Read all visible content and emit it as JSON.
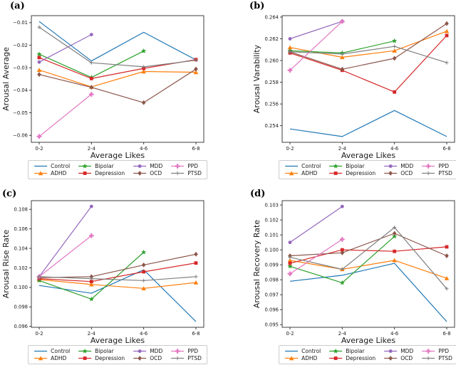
{
  "figure_title": "",
  "xlabel_shared": "Average Likes",
  "panel_labels": [
    "(a)",
    "(b)",
    "(c)",
    "(d)"
  ],
  "accent_colors": {
    "blue": "#1f77b4",
    "orange": "#ff7f0e",
    "green": "#2ca02c",
    "red": "#d62728",
    "purple": "#9467bd",
    "brown": "#8c564b",
    "pink": "#e377c2",
    "gray": "#7f7f7f"
  },
  "legend_styles": [
    {
      "name": "Control",
      "color": "#1f77b4",
      "marker": "line"
    },
    {
      "name": "ADHD",
      "color": "#ff7f0e",
      "marker": "triangle"
    },
    {
      "name": "Bipolar",
      "color": "#2ca02c",
      "marker": "star"
    },
    {
      "name": "Depression",
      "color": "#d62728",
      "marker": "square"
    },
    {
      "name": "MDD",
      "color": "#9467bd",
      "marker": "circle"
    },
    {
      "name": "OCD",
      "color": "#8c564b",
      "marker": "diamond"
    },
    {
      "name": "PPD",
      "color": "#e377c2",
      "marker": "plus"
    },
    {
      "name": "PTSD",
      "color": "#7f7f7f",
      "marker": "thinplus"
    }
  ],
  "chart_data": [
    {
      "type": "line",
      "panel_label": "(a)",
      "xlabel": "Average Likes",
      "ylabel": "Arousal Average",
      "categories": [
        "0-2",
        "2-4",
        "4-6",
        "6-8"
      ],
      "ylim": [
        -0.0631,
        -0.0069
      ],
      "yticks": [
        {
          "v": -0.01,
          "label": "−0.01"
        },
        {
          "v": -0.02,
          "label": "−0.02"
        },
        {
          "v": -0.03,
          "label": "−0.03"
        },
        {
          "v": -0.04,
          "label": "−0.04"
        },
        {
          "v": -0.05,
          "label": "−0.05"
        },
        {
          "v": -0.06,
          "label": "−0.06"
        }
      ],
      "legend_position": "below",
      "grid": false,
      "series": [
        {
          "name": "Control",
          "values": [
            -0.0095,
            -0.027,
            -0.0143,
            -0.0265
          ]
        },
        {
          "name": "ADHD",
          "values": [
            -0.031,
            -0.0385,
            -0.0317,
            -0.032
          ]
        },
        {
          "name": "Bipolar",
          "values": [
            -0.024,
            -0.0343,
            -0.0226,
            null
          ]
        },
        {
          "name": "Depression",
          "values": [
            -0.0255,
            -0.0348,
            -0.0303,
            -0.0264
          ]
        },
        {
          "name": "MDD",
          "values": [
            -0.0275,
            -0.0153,
            null,
            null
          ]
        },
        {
          "name": "OCD",
          "values": [
            -0.033,
            -0.0387,
            -0.0455,
            -0.0306
          ]
        },
        {
          "name": "PPD",
          "values": [
            -0.0605,
            -0.0418,
            null,
            null
          ]
        },
        {
          "name": "PTSD",
          "values": [
            -0.012,
            -0.0278,
            -0.0296,
            -0.0267
          ]
        }
      ]
    },
    {
      "type": "line",
      "panel_label": "(b)",
      "xlabel": "Average Likes",
      "ylabel": "Arousal Varability",
      "categories": [
        "0-2",
        "2-4",
        "4-6",
        "6-8"
      ],
      "ylim": [
        0.25247,
        0.26413
      ],
      "yticks": [
        {
          "v": 0.264,
          "label": "0.264"
        },
        {
          "v": 0.262,
          "label": "0.262"
        },
        {
          "v": 0.26,
          "label": "0.260"
        },
        {
          "v": 0.258,
          "label": "0.258"
        },
        {
          "v": 0.256,
          "label": "0.256"
        },
        {
          "v": 0.254,
          "label": "0.254"
        }
      ],
      "legend_position": "below",
      "grid": false,
      "series": [
        {
          "name": "Control",
          "values": [
            0.2537,
            0.253,
            0.2554,
            0.253
          ]
        },
        {
          "name": "ADHD",
          "values": [
            0.2612,
            0.2603,
            0.2609,
            0.2627
          ]
        },
        {
          "name": "Bipolar",
          "values": [
            0.2609,
            0.2607,
            0.2618,
            null
          ]
        },
        {
          "name": "Depression",
          "values": [
            0.2607,
            0.2591,
            0.2571,
            0.2623
          ]
        },
        {
          "name": "MDD",
          "values": [
            0.262,
            0.2636,
            null,
            null
          ]
        },
        {
          "name": "OCD",
          "values": [
            0.2608,
            0.2592,
            0.2602,
            0.2634
          ]
        },
        {
          "name": "PPD",
          "values": [
            0.2591,
            0.2636,
            null,
            null
          ]
        },
        {
          "name": "PTSD",
          "values": [
            0.2608,
            0.2606,
            0.2613,
            0.2598
          ]
        }
      ]
    },
    {
      "type": "line",
      "panel_label": "(c)",
      "xlabel": "Average Likes",
      "ylabel": "Arousal Rise Rate",
      "categories": [
        "0-2",
        "2-4",
        "4-6",
        "6-8"
      ],
      "ylim": [
        0.09591,
        0.10889
      ],
      "yticks": [
        {
          "v": 0.108,
          "label": "0.108"
        },
        {
          "v": 0.106,
          "label": "0.106"
        },
        {
          "v": 0.104,
          "label": "0.104"
        },
        {
          "v": 0.102,
          "label": "0.102"
        },
        {
          "v": 0.1,
          "label": "0.100"
        },
        {
          "v": 0.098,
          "label": "0.098"
        },
        {
          "v": 0.096,
          "label": "0.096"
        }
      ],
      "legend_position": "below",
      "grid": false,
      "series": [
        {
          "name": "Control",
          "values": [
            0.1002,
            0.0994,
            0.1018,
            0.0965
          ]
        },
        {
          "name": "ADHD",
          "values": [
            0.1008,
            0.1003,
            0.0999,
            0.1005
          ]
        },
        {
          "name": "Bipolar",
          "values": [
            0.1007,
            0.0988,
            0.1036,
            null
          ]
        },
        {
          "name": "Depression",
          "values": [
            0.1009,
            0.1006,
            0.1016,
            0.1025
          ]
        },
        {
          "name": "MDD",
          "values": [
            0.1011,
            0.1083,
            null,
            null
          ]
        },
        {
          "name": "OCD",
          "values": [
            0.101,
            0.1011,
            0.1023,
            0.1034
          ]
        },
        {
          "name": "PPD",
          "values": [
            0.1011,
            0.1053,
            null,
            null
          ]
        },
        {
          "name": "PTSD",
          "values": [
            0.1011,
            0.1009,
            0.1007,
            0.1011
          ]
        }
      ]
    },
    {
      "type": "line",
      "panel_label": "(d)",
      "xlabel": "Average Likes",
      "ylabel": "Arousal Recovery Rate",
      "categories": [
        "0-2",
        "2-4",
        "4-6",
        "6-8"
      ],
      "ylim": [
        0.09482,
        0.10329
      ],
      "yticks": [
        {
          "v": 0.103,
          "label": "0.103"
        },
        {
          "v": 0.102,
          "label": "0.102"
        },
        {
          "v": 0.101,
          "label": "0.101"
        },
        {
          "v": 0.1,
          "label": "0.100"
        },
        {
          "v": 0.099,
          "label": "0.099"
        },
        {
          "v": 0.098,
          "label": "0.098"
        },
        {
          "v": 0.097,
          "label": "0.097"
        },
        {
          "v": 0.096,
          "label": "0.096"
        },
        {
          "v": 0.095,
          "label": "0.095"
        }
      ],
      "legend_position": "below",
      "grid": false,
      "series": [
        {
          "name": "Control",
          "values": [
            0.0979,
            0.0983,
            0.0991,
            0.0952
          ]
        },
        {
          "name": "ADHD",
          "values": [
            0.0993,
            0.0987,
            0.0993,
            0.0981
          ]
        },
        {
          "name": "Bipolar",
          "values": [
            0.0989,
            0.0978,
            0.1009,
            null
          ]
        },
        {
          "name": "Depression",
          "values": [
            0.0991,
            0.1,
            0.0999,
            0.1002
          ]
        },
        {
          "name": "MDD",
          "values": [
            0.1005,
            0.1029,
            null,
            null
          ]
        },
        {
          "name": "OCD",
          "values": [
            0.0996,
            0.0998,
            0.1011,
            0.0996
          ]
        },
        {
          "name": "PPD",
          "values": [
            0.0984,
            0.1007,
            null,
            null
          ]
        },
        {
          "name": "PTSD",
          "values": [
            0.0995,
            0.0987,
            0.1015,
            0.0974
          ]
        }
      ]
    }
  ]
}
